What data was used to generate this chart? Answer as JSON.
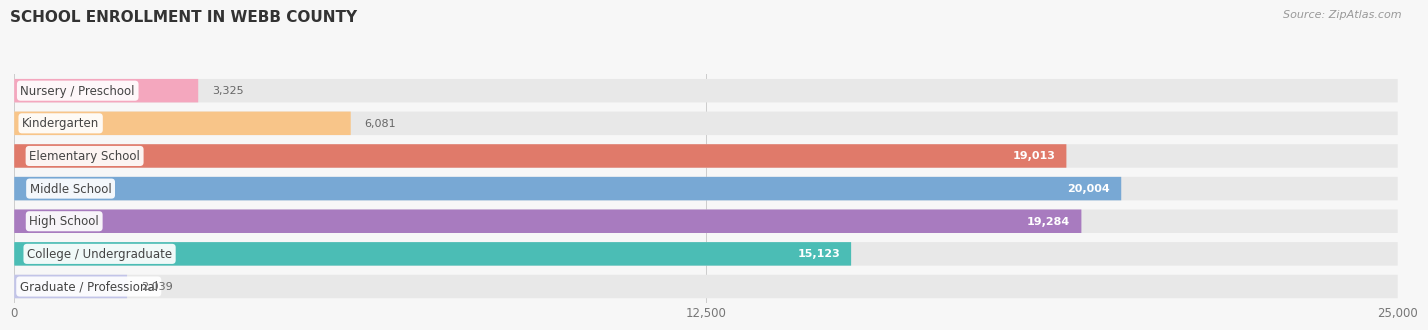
{
  "title": "SCHOOL ENROLLMENT IN WEBB COUNTY",
  "source": "Source: ZipAtlas.com",
  "categories": [
    "Nursery / Preschool",
    "Kindergarten",
    "Elementary School",
    "Middle School",
    "High School",
    "College / Undergraduate",
    "Graduate / Professional"
  ],
  "values": [
    3325,
    6081,
    19013,
    20004,
    19284,
    15123,
    2039
  ],
  "colors": [
    "#F4A7BE",
    "#F8C589",
    "#E07A6A",
    "#78A8D4",
    "#A87BBF",
    "#4BBDB5",
    "#C2C4E8"
  ],
  "xlim_max": 25000,
  "xticks": [
    0,
    12500,
    25000
  ],
  "xtick_labels": [
    "0",
    "12,500",
    "25,000"
  ],
  "background_color": "#f7f7f7",
  "bar_bg_color": "#e8e8e8",
  "title_fontsize": 11,
  "label_fontsize": 8.5,
  "value_fontsize": 8,
  "source_fontsize": 8,
  "bar_height": 0.72,
  "value_threshold": 8000
}
